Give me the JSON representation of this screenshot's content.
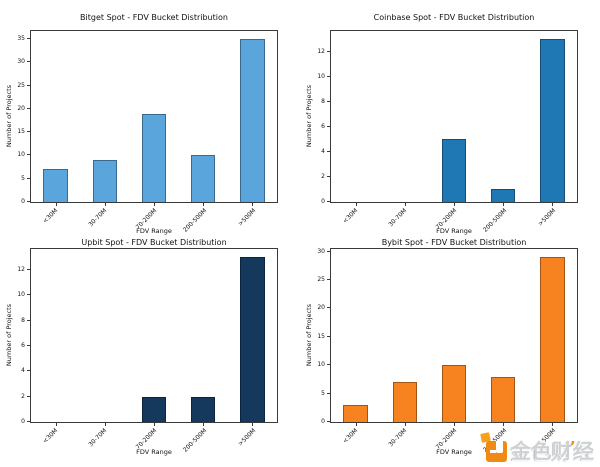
{
  "figure": {
    "background": "#ffffff",
    "frame_color": "#3a3a3a"
  },
  "watermark": {
    "name": "Jinse Finance",
    "text_left": "金色财",
    "accent": "’",
    "text_right": "经",
    "logo_color": "#f08a12",
    "text_color": "#cdd1d4"
  },
  "chart_data": [
    {
      "type": "bar",
      "exchange": "Bitget",
      "title": "Bitget Spot - FDV Bucket Distribution",
      "xlabel": "FDV Range",
      "ylabel": "Number of Projects",
      "categories": [
        "<30M",
        "30-70M",
        "70-200M",
        "200-500M",
        ">500M"
      ],
      "values": [
        7,
        9,
        19,
        10,
        35
      ],
      "yticks": [
        0,
        5,
        10,
        15,
        20,
        25,
        30,
        35
      ],
      "ylim": [
        0,
        36.75
      ],
      "bar_color": "#5aa5db",
      "grid": false,
      "legend": false
    },
    {
      "type": "bar",
      "exchange": "Coinbase",
      "title": "Coinbase Spot - FDV Bucket Distribution",
      "xlabel": "FDV Range",
      "ylabel": "Number of Projects",
      "categories": [
        "<30M",
        "30-70M",
        "70-200M",
        "200-500M",
        ">500M"
      ],
      "values": [
        0,
        0,
        5,
        1,
        13
      ],
      "yticks": [
        0,
        2,
        4,
        6,
        8,
        10,
        12
      ],
      "ylim": [
        0,
        13.65
      ],
      "bar_color": "#1f77b4",
      "grid": false,
      "legend": false
    },
    {
      "type": "bar",
      "exchange": "Upbit",
      "title": "Upbit Spot - FDV Bucket Distribution",
      "xlabel": "FDV Range",
      "ylabel": "Number of Projects",
      "categories": [
        "<30M",
        "30-70M",
        "70-200M",
        "200-500M",
        ">500M"
      ],
      "values": [
        0,
        0,
        2,
        2,
        13
      ],
      "yticks": [
        0,
        2,
        4,
        6,
        8,
        10,
        12
      ],
      "ylim": [
        0,
        13.65
      ],
      "bar_color": "#14395c",
      "grid": false,
      "legend": false
    },
    {
      "type": "bar",
      "exchange": "Bybit",
      "title": "Bybit Spot - FDV Bucket Distribution",
      "xlabel": "FDV Range",
      "ylabel": "Number of Projects",
      "categories": [
        "<30M",
        "30-70M",
        "70-200M",
        "200-500M",
        ">500M"
      ],
      "values": [
        3,
        7,
        10,
        8,
        29
      ],
      "yticks": [
        0,
        5,
        10,
        15,
        20,
        25,
        30
      ],
      "ylim": [
        0,
        30.45
      ],
      "bar_color": "#f6831f",
      "grid": false,
      "legend": false
    }
  ]
}
